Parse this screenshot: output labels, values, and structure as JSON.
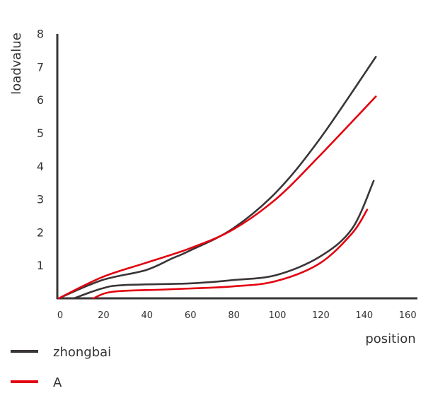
{
  "chart_data": {
    "type": "line",
    "title": "",
    "xlabel": "position",
    "ylabel": "loadvalue",
    "xlim": [
      0,
      165
    ],
    "ylim": [
      0,
      8
    ],
    "xticks": [
      0,
      20,
      40,
      60,
      80,
      100,
      120,
      140,
      160
    ],
    "yticks": [
      1,
      2,
      3,
      4,
      5,
      6,
      7,
      8
    ],
    "grid": false,
    "legend": "bottom-left",
    "series": [
      {
        "name": "zhongbai",
        "color": "#3a3536",
        "curves": [
          [
            [
              0,
              0
            ],
            [
              20,
              0.55
            ],
            [
              40,
              0.85
            ],
            [
              52,
              1.2
            ],
            [
              60,
              1.43
            ],
            [
              80,
              2.1
            ],
            [
              100,
              3.2
            ],
            [
              120,
              4.8
            ],
            [
              146,
              7.3
            ]
          ],
          [
            [
              7,
              0
            ],
            [
              20,
              0.3
            ],
            [
              30,
              0.4
            ],
            [
              60,
              0.45
            ],
            [
              80,
              0.55
            ],
            [
              100,
              0.7
            ],
            [
              120,
              1.25
            ],
            [
              135,
              2.1
            ],
            [
              145,
              3.55
            ]
          ]
        ]
      },
      {
        "name": "A",
        "color": "#e3000f",
        "curves": [
          [
            [
              0,
              0
            ],
            [
              20,
              0.64
            ],
            [
              40,
              1.07
            ],
            [
              60,
              1.5
            ],
            [
              80,
              2.07
            ],
            [
              100,
              3.0
            ],
            [
              120,
              4.3
            ],
            [
              146,
              6.1
            ]
          ],
          [
            [
              16,
              0
            ],
            [
              25,
              0.2
            ],
            [
              50,
              0.27
            ],
            [
              80,
              0.36
            ],
            [
              100,
              0.52
            ],
            [
              120,
              1.05
            ],
            [
              135,
              1.96
            ],
            [
              142,
              2.68
            ]
          ]
        ]
      }
    ]
  }
}
